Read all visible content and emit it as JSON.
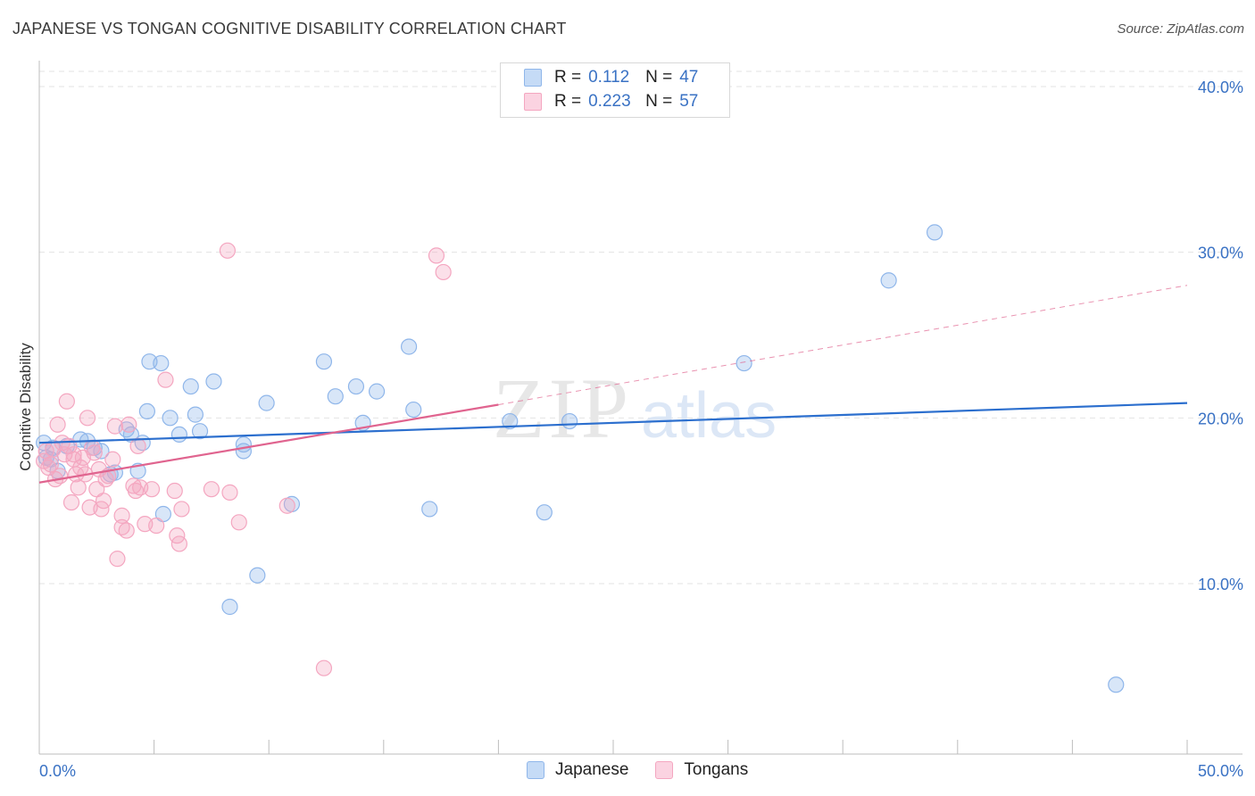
{
  "title": "JAPANESE VS TONGAN COGNITIVE DISABILITY CORRELATION CHART",
  "source": "Source: ZipAtlas.com",
  "watermark": {
    "zip": "ZIP",
    "atlas": "atlas"
  },
  "legend": {
    "rows": [
      {
        "r_label": "R =",
        "r_value": "0.112",
        "n_label": "N =",
        "n_value": "47",
        "color": "#8fb6ea"
      },
      {
        "r_label": "R =",
        "r_value": "0.223",
        "n_label": "N =",
        "n_value": "57",
        "color": "#f4a6c0"
      }
    ]
  },
  "bottom_legend": [
    {
      "label": "Japanese",
      "color": "#8fb6ea"
    },
    {
      "label": "Tongans",
      "color": "#f4a6c0"
    }
  ],
  "chart_data": {
    "type": "scatter",
    "title": "JAPANESE VS TONGAN COGNITIVE DISABILITY CORRELATION CHART",
    "xlabel": "",
    "ylabel": "Cognitive Disability",
    "xlim": [
      0,
      50
    ],
    "ylim": [
      0,
      40
    ],
    "x_tick_labels": [
      "0.0%",
      "50.0%"
    ],
    "y_tick_labels": [
      "10.0%",
      "20.0%",
      "30.0%",
      "40.0%"
    ],
    "y_ticks": [
      10,
      20,
      30,
      40
    ],
    "grid": true,
    "legend_position": "top-center",
    "series": [
      {
        "name": "Japanese",
        "color": "#8fb6ea",
        "line_color": "#2c6fce",
        "trend": {
          "x": [
            0,
            50
          ],
          "y": [
            18.5,
            20.9
          ],
          "dashed_from": null
        },
        "points": [
          [
            0.2,
            18.5
          ],
          [
            0.5,
            17.5
          ],
          [
            0.6,
            18.2
          ],
          [
            0.8,
            16.8
          ],
          [
            1.2,
            18.3
          ],
          [
            1.8,
            18.7
          ],
          [
            2.1,
            18.6
          ],
          [
            2.4,
            18.2
          ],
          [
            2.7,
            18.0
          ],
          [
            3.1,
            16.6
          ],
          [
            3.3,
            16.7
          ],
          [
            3.8,
            19.3
          ],
          [
            4.0,
            19.0
          ],
          [
            4.3,
            16.8
          ],
          [
            4.5,
            18.5
          ],
          [
            4.7,
            20.4
          ],
          [
            4.8,
            23.4
          ],
          [
            5.3,
            23.3
          ],
          [
            5.4,
            14.2
          ],
          [
            5.7,
            20.0
          ],
          [
            6.1,
            19.0
          ],
          [
            6.6,
            21.9
          ],
          [
            6.8,
            20.2
          ],
          [
            7.0,
            19.2
          ],
          [
            7.6,
            22.2
          ],
          [
            8.3,
            8.6
          ],
          [
            8.9,
            18.4
          ],
          [
            8.9,
            18.0
          ],
          [
            9.5,
            10.5
          ],
          [
            9.9,
            20.9
          ],
          [
            11.0,
            14.8
          ],
          [
            12.4,
            23.4
          ],
          [
            12.9,
            21.3
          ],
          [
            13.8,
            21.9
          ],
          [
            14.1,
            19.7
          ],
          [
            14.7,
            21.6
          ],
          [
            16.1,
            24.3
          ],
          [
            16.3,
            20.5
          ],
          [
            17.0,
            14.5
          ],
          [
            20.5,
            19.8
          ],
          [
            22.0,
            14.3
          ],
          [
            23.1,
            19.8
          ],
          [
            30.7,
            23.3
          ],
          [
            37.0,
            28.3
          ],
          [
            39.0,
            31.2
          ],
          [
            46.9,
            3.9
          ],
          [
            0.3,
            17.6
          ]
        ]
      },
      {
        "name": "Tongans",
        "color": "#f4a6c0",
        "line_color": "#e0648f",
        "trend": {
          "x": [
            0,
            20
          ],
          "y": [
            16.1,
            20.8
          ],
          "dashed_to": [
            50,
            28.0
          ]
        },
        "points": [
          [
            0.2,
            17.4
          ],
          [
            0.3,
            18.0
          ],
          [
            0.5,
            17.2
          ],
          [
            0.7,
            16.3
          ],
          [
            0.8,
            19.6
          ],
          [
            1.0,
            18.5
          ],
          [
            1.1,
            17.8
          ],
          [
            1.2,
            21.0
          ],
          [
            1.3,
            18.3
          ],
          [
            1.4,
            14.9
          ],
          [
            1.5,
            17.5
          ],
          [
            1.6,
            16.6
          ],
          [
            1.7,
            15.8
          ],
          [
            1.8,
            17.0
          ],
          [
            1.9,
            17.6
          ],
          [
            2.0,
            16.6
          ],
          [
            2.1,
            20.0
          ],
          [
            2.2,
            14.6
          ],
          [
            2.3,
            18.2
          ],
          [
            2.4,
            17.9
          ],
          [
            2.5,
            15.7
          ],
          [
            2.6,
            16.9
          ],
          [
            2.7,
            14.5
          ],
          [
            2.8,
            15.0
          ],
          [
            3.0,
            16.5
          ],
          [
            3.2,
            17.5
          ],
          [
            3.3,
            19.5
          ],
          [
            3.4,
            11.5
          ],
          [
            3.6,
            13.4
          ],
          [
            3.8,
            13.2
          ],
          [
            3.9,
            19.6
          ],
          [
            4.1,
            15.9
          ],
          [
            4.2,
            15.6
          ],
          [
            4.3,
            18.3
          ],
          [
            4.4,
            15.8
          ],
          [
            4.6,
            13.6
          ],
          [
            4.9,
            15.7
          ],
          [
            5.1,
            13.5
          ],
          [
            5.5,
            22.3
          ],
          [
            5.9,
            15.6
          ],
          [
            6.0,
            12.9
          ],
          [
            6.1,
            12.4
          ],
          [
            6.2,
            14.5
          ],
          [
            7.5,
            15.7
          ],
          [
            8.2,
            30.1
          ],
          [
            8.3,
            15.5
          ],
          [
            8.7,
            13.7
          ],
          [
            10.8,
            14.7
          ],
          [
            12.4,
            4.9
          ],
          [
            17.3,
            29.8
          ],
          [
            17.6,
            28.8
          ],
          [
            0.4,
            17.0
          ],
          [
            0.9,
            16.5
          ],
          [
            1.5,
            17.8
          ],
          [
            2.9,
            16.3
          ],
          [
            3.6,
            14.1
          ],
          [
            0.6,
            18.1
          ]
        ]
      }
    ]
  }
}
